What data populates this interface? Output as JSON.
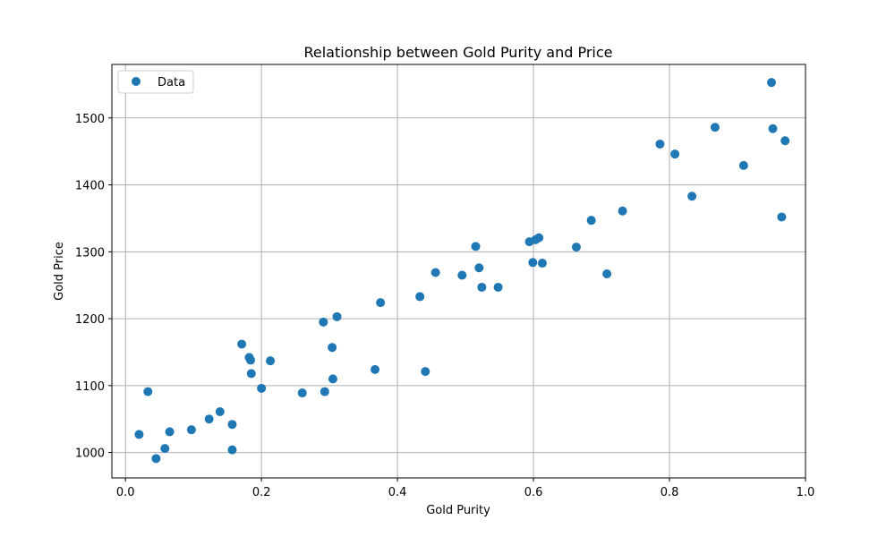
{
  "chart_data": {
    "type": "scatter",
    "title": "Relationship between Gold Purity and Price",
    "xlabel": "Gold Purity",
    "ylabel": "Gold Price",
    "xlim": [
      -0.02,
      1.0
    ],
    "ylim": [
      962,
      1580
    ],
    "xticks": [
      0.0,
      0.2,
      0.4,
      0.6,
      0.8,
      1.0
    ],
    "xtick_labels": [
      "0.0",
      "0.2",
      "0.4",
      "0.6",
      "0.8",
      "1.0"
    ],
    "yticks": [
      1000,
      1100,
      1200,
      1300,
      1400,
      1500
    ],
    "ytick_labels": [
      "1000",
      "1100",
      "1200",
      "1300",
      "1400",
      "1500"
    ],
    "grid": true,
    "legend": {
      "position": "top-left",
      "entries": [
        "Data"
      ]
    },
    "color": "#1f77b4",
    "series": [
      {
        "name": "Data",
        "points": [
          [
            0.02,
            1027
          ],
          [
            0.033,
            1091
          ],
          [
            0.045,
            991
          ],
          [
            0.058,
            1006
          ],
          [
            0.065,
            1031
          ],
          [
            0.097,
            1034
          ],
          [
            0.123,
            1050
          ],
          [
            0.139,
            1061
          ],
          [
            0.157,
            1042
          ],
          [
            0.157,
            1004
          ],
          [
            0.171,
            1162
          ],
          [
            0.182,
            1142
          ],
          [
            0.184,
            1138
          ],
          [
            0.185,
            1118
          ],
          [
            0.2,
            1096
          ],
          [
            0.213,
            1137
          ],
          [
            0.26,
            1089
          ],
          [
            0.291,
            1195
          ],
          [
            0.293,
            1091
          ],
          [
            0.304,
            1157
          ],
          [
            0.305,
            1110
          ],
          [
            0.311,
            1203
          ],
          [
            0.367,
            1124
          ],
          [
            0.375,
            1224
          ],
          [
            0.433,
            1233
          ],
          [
            0.441,
            1121
          ],
          [
            0.456,
            1269
          ],
          [
            0.495,
            1265
          ],
          [
            0.515,
            1308
          ],
          [
            0.52,
            1276
          ],
          [
            0.524,
            1247
          ],
          [
            0.548,
            1247
          ],
          [
            0.594,
            1315
          ],
          [
            0.599,
            1284
          ],
          [
            0.603,
            1318
          ],
          [
            0.608,
            1321
          ],
          [
            0.613,
            1283
          ],
          [
            0.663,
            1307
          ],
          [
            0.685,
            1347
          ],
          [
            0.708,
            1267
          ],
          [
            0.731,
            1361
          ],
          [
            0.786,
            1461
          ],
          [
            0.808,
            1446
          ],
          [
            0.833,
            1383
          ],
          [
            0.867,
            1486
          ],
          [
            0.909,
            1429
          ],
          [
            0.95,
            1553
          ],
          [
            0.952,
            1484
          ],
          [
            0.965,
            1352
          ],
          [
            0.97,
            1466
          ]
        ]
      }
    ]
  }
}
